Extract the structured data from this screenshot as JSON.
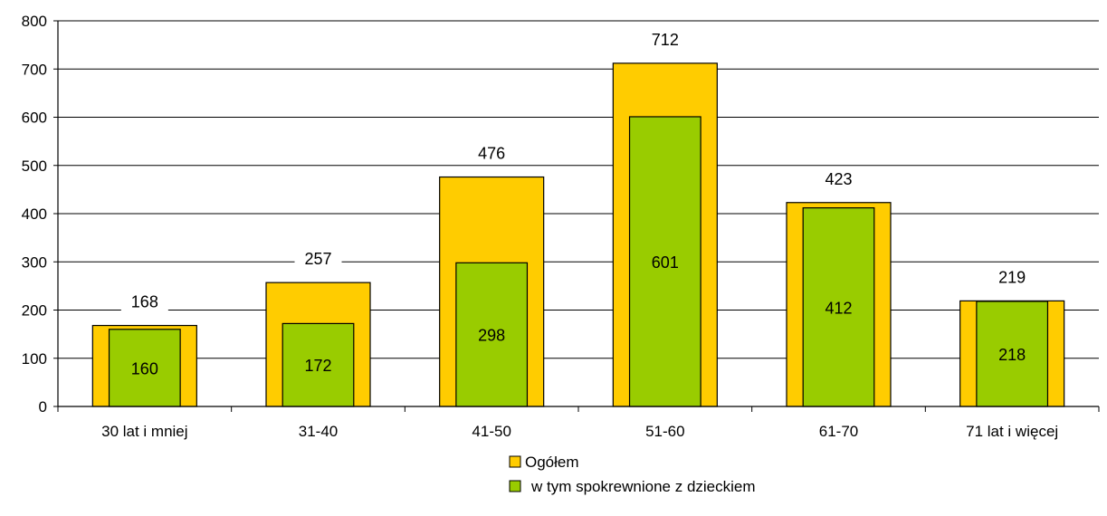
{
  "chart_data": {
    "type": "bar",
    "categories": [
      "30 lat i mniej",
      "31-40",
      "41-50",
      "51-60",
      "61-70",
      "71 lat i więcej"
    ],
    "series": [
      {
        "name": "Ogółem",
        "values": [
          168,
          257,
          476,
          712,
          423,
          219
        ],
        "color": "#FFCC00"
      },
      {
        "name": "w tym spokrewnione z dzieckiem",
        "values": [
          160,
          172,
          298,
          601,
          412,
          218
        ],
        "color": "#99CC00"
      }
    ],
    "yticks": [
      0,
      100,
      200,
      300,
      400,
      500,
      600,
      700,
      800
    ],
    "ylim": [
      0,
      800
    ],
    "grid": true,
    "legend_position": "bottom-center",
    "title": "",
    "xlabel": "",
    "ylabel": ""
  }
}
